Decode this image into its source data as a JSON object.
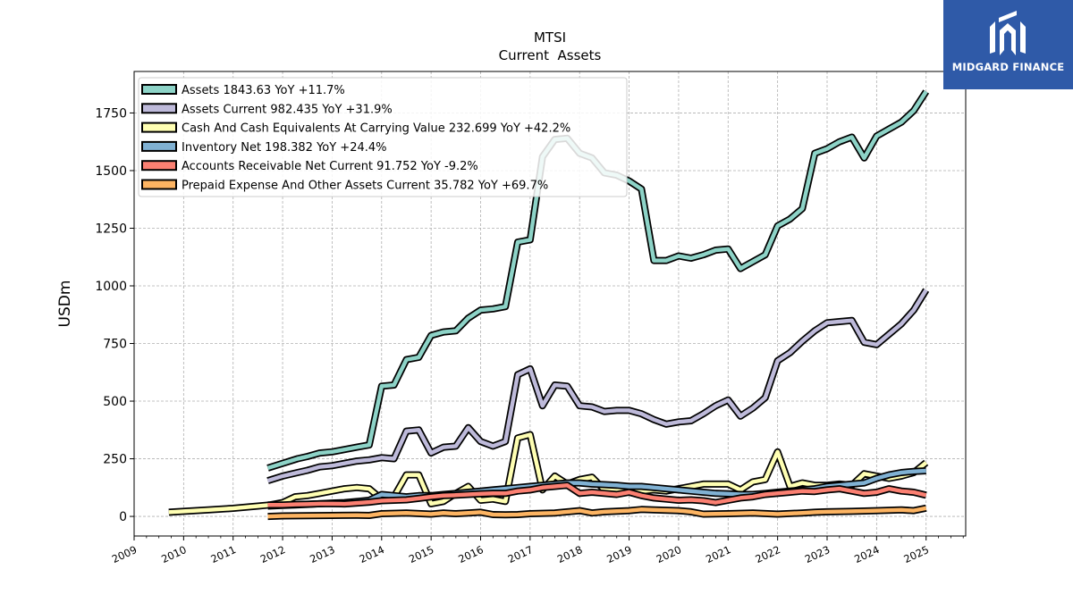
{
  "brand": {
    "name": "MIDGARD FINANCE",
    "color": "#2f5aa8"
  },
  "chart_data": {
    "type": "line",
    "title": "MTSI",
    "subtitle": "Current  Assets",
    "ylabel": "USDm",
    "xlim": [
      2009.0,
      2025.8
    ],
    "ylim": [
      -85,
      1930
    ],
    "xticks": [
      "2009",
      "2010",
      "2011",
      "2012",
      "2013",
      "2014",
      "2015",
      "2016",
      "2017",
      "2018",
      "2019",
      "2020",
      "2021",
      "2022",
      "2023",
      "2024",
      "2025"
    ],
    "yticks": [
      0,
      250,
      500,
      750,
      1000,
      1250,
      1500,
      1750
    ],
    "grid": true,
    "legend_position": "upper-left",
    "series": [
      {
        "name": "Assets  1843.63 YoY +11.7%",
        "color": "#8dd3c7",
        "x": [
          2011.7,
          2012.0,
          2012.3,
          2012.5,
          2012.75,
          2013.0,
          2013.25,
          2013.5,
          2013.75,
          2014.0,
          2014.25,
          2014.5,
          2014.75,
          2015.0,
          2015.25,
          2015.5,
          2015.75,
          2016.0,
          2016.25,
          2016.5,
          2016.75,
          2017.0,
          2017.25,
          2017.5,
          2017.75,
          2018.0,
          2018.25,
          2018.5,
          2018.75,
          2019.0,
          2019.25,
          2019.5,
          2019.75,
          2020.0,
          2020.25,
          2020.5,
          2020.75,
          2021.0,
          2021.25,
          2021.5,
          2021.75,
          2022.0,
          2022.25,
          2022.5,
          2022.75,
          2023.0,
          2023.25,
          2023.5,
          2023.75,
          2024.0,
          2024.25,
          2024.5,
          2024.75,
          2025.0
        ],
        "values": [
          210,
          230,
          250,
          260,
          275,
          280,
          290,
          300,
          310,
          565,
          570,
          680,
          690,
          785,
          800,
          805,
          860,
          895,
          900,
          910,
          1190,
          1200,
          1560,
          1635,
          1640,
          1575,
          1555,
          1490,
          1480,
          1455,
          1420,
          1110,
          1110,
          1130,
          1120,
          1135,
          1155,
          1160,
          1075,
          1105,
          1135,
          1260,
          1290,
          1335,
          1575,
          1595,
          1625,
          1645,
          1555,
          1650,
          1680,
          1710,
          1760,
          1843
        ]
      },
      {
        "name": "Assets Current  982.435 YoY +31.9%",
        "color": "#bebada",
        "x": [
          2011.7,
          2012.0,
          2012.3,
          2012.5,
          2012.75,
          2013.0,
          2013.25,
          2013.5,
          2013.75,
          2014.0,
          2014.25,
          2014.5,
          2014.75,
          2015.0,
          2015.25,
          2015.5,
          2015.75,
          2016.0,
          2016.25,
          2016.5,
          2016.75,
          2017.0,
          2017.25,
          2017.5,
          2017.75,
          2018.0,
          2018.25,
          2018.5,
          2018.75,
          2019.0,
          2019.25,
          2019.5,
          2019.75,
          2020.0,
          2020.25,
          2020.5,
          2020.75,
          2021.0,
          2021.25,
          2021.5,
          2021.75,
          2022.0,
          2022.25,
          2022.5,
          2022.75,
          2023.0,
          2023.25,
          2023.5,
          2023.75,
          2024.0,
          2024.25,
          2024.5,
          2024.75,
          2025.0
        ],
        "values": [
          155,
          175,
          190,
          200,
          215,
          220,
          230,
          240,
          245,
          255,
          250,
          370,
          375,
          275,
          300,
          305,
          385,
          325,
          305,
          325,
          615,
          640,
          480,
          570,
          565,
          480,
          475,
          455,
          460,
          460,
          445,
          420,
          400,
          410,
          415,
          445,
          480,
          505,
          435,
          470,
          515,
          675,
          710,
          760,
          805,
          840,
          845,
          850,
          755,
          745,
          790,
          835,
          895,
          982
        ]
      },
      {
        "name": "Cash And Cash Equivalents At Carrying Value  232.699 YoY +42.2%",
        "color": "#ffffb3",
        "x": [
          2009.7,
          2010.0,
          2010.5,
          2011.0,
          2011.5,
          2011.75,
          2012.0,
          2012.25,
          2012.5,
          2012.75,
          2013.0,
          2013.25,
          2013.5,
          2013.75,
          2014.0,
          2014.25,
          2014.5,
          2014.75,
          2015.0,
          2015.25,
          2015.5,
          2015.75,
          2016.0,
          2016.25,
          2016.5,
          2016.75,
          2017.0,
          2017.25,
          2017.5,
          2017.75,
          2018.0,
          2018.25,
          2018.5,
          2018.75,
          2019.0,
          2019.25,
          2019.5,
          2019.75,
          2020.0,
          2020.25,
          2020.5,
          2020.75,
          2021.0,
          2021.25,
          2021.5,
          2021.75,
          2022.0,
          2022.25,
          2022.5,
          2022.75,
          2023.0,
          2023.25,
          2023.5,
          2023.75,
          2024.0,
          2024.25,
          2024.5,
          2024.75,
          2025.0
        ],
        "values": [
          18,
          22,
          28,
          35,
          45,
          50,
          60,
          85,
          90,
          100,
          110,
          120,
          125,
          120,
          75,
          85,
          180,
          180,
          55,
          65,
          100,
          130,
          70,
          75,
          65,
          340,
          355,
          115,
          175,
          140,
          160,
          170,
          115,
          115,
          110,
          110,
          115,
          110,
          120,
          130,
          140,
          140,
          140,
          115,
          150,
          160,
          280,
          130,
          145,
          135,
          135,
          140,
          135,
          185,
          175,
          165,
          175,
          190,
          233
        ]
      },
      {
        "name": "Inventory Net  198.382 YoY +24.4%",
        "color": "#80b1d3",
        "x": [
          2011.7,
          2012.0,
          2012.25,
          2012.5,
          2012.75,
          2013.0,
          2013.25,
          2013.5,
          2013.75,
          2014.0,
          2014.25,
          2014.5,
          2014.75,
          2015.0,
          2015.25,
          2015.5,
          2015.75,
          2016.0,
          2016.25,
          2016.5,
          2016.75,
          2017.0,
          2017.25,
          2017.5,
          2017.75,
          2018.0,
          2018.25,
          2018.5,
          2018.75,
          2019.0,
          2019.25,
          2019.5,
          2019.75,
          2020.0,
          2020.25,
          2020.5,
          2020.75,
          2021.0,
          2021.25,
          2021.5,
          2021.75,
          2022.0,
          2022.25,
          2022.5,
          2022.75,
          2023.0,
          2023.25,
          2023.5,
          2023.75,
          2024.0,
          2024.25,
          2024.5,
          2024.75,
          2025.0
        ],
        "values": [
          45,
          48,
          50,
          52,
          55,
          58,
          60,
          65,
          70,
          95,
          90,
          85,
          90,
          90,
          95,
          100,
          105,
          110,
          115,
          120,
          125,
          130,
          135,
          140,
          145,
          145,
          140,
          138,
          135,
          130,
          130,
          125,
          120,
          115,
          110,
          105,
          100,
          98,
          95,
          95,
          100,
          105,
          110,
          115,
          120,
          130,
          135,
          140,
          145,
          165,
          180,
          190,
          195,
          198
        ]
      },
      {
        "name": "Accounts Receivable Net Current  91.752 YoY -9.2%",
        "color": "#fb8072",
        "x": [
          2011.7,
          2012.0,
          2012.25,
          2012.5,
          2012.75,
          2013.0,
          2013.25,
          2013.5,
          2013.75,
          2014.0,
          2014.25,
          2014.5,
          2014.75,
          2015.0,
          2015.25,
          2015.5,
          2015.75,
          2016.0,
          2016.25,
          2016.5,
          2016.75,
          2017.0,
          2017.25,
          2017.5,
          2017.75,
          2018.0,
          2018.25,
          2018.5,
          2018.75,
          2019.0,
          2019.25,
          2019.5,
          2019.75,
          2020.0,
          2020.25,
          2020.5,
          2020.75,
          2021.0,
          2021.25,
          2021.5,
          2021.75,
          2022.0,
          2022.25,
          2022.5,
          2022.75,
          2023.0,
          2023.25,
          2023.5,
          2023.75,
          2024.0,
          2024.25,
          2024.5,
          2024.75,
          2025.0
        ],
        "values": [
          50,
          50,
          52,
          53,
          55,
          55,
          54,
          58,
          62,
          68,
          70,
          72,
          78,
          85,
          90,
          92,
          95,
          98,
          100,
          100,
          110,
          115,
          125,
          130,
          135,
          100,
          105,
          100,
          95,
          105,
          90,
          80,
          75,
          70,
          72,
          68,
          60,
          70,
          80,
          85,
          95,
          100,
          105,
          110,
          108,
          115,
          120,
          110,
          100,
          105,
          120,
          110,
          105,
          92
        ]
      },
      {
        "name": "Prepaid Expense And Other Assets Current  35.782 YoY +69.7%",
        "color": "#fdb462",
        "x": [
          2011.7,
          2012.0,
          2012.5,
          2013.0,
          2013.5,
          2013.75,
          2014.0,
          2014.5,
          2015.0,
          2015.25,
          2015.5,
          2015.75,
          2016.0,
          2016.25,
          2016.5,
          2016.75,
          2017.0,
          2017.5,
          2018.0,
          2018.25,
          2018.5,
          2019.0,
          2019.25,
          2019.5,
          2020.0,
          2020.25,
          2020.5,
          2021.0,
          2021.5,
          2022.0,
          2022.5,
          2022.75,
          2023.0,
          2023.5,
          2024.0,
          2024.5,
          2024.75,
          2025.0
        ],
        "values": [
          0,
          2,
          3,
          4,
          5,
          4,
          12,
          15,
          10,
          15,
          12,
          15,
          18,
          8,
          7,
          8,
          12,
          15,
          25,
          15,
          20,
          25,
          30,
          28,
          25,
          20,
          10,
          12,
          15,
          10,
          15,
          18,
          20,
          22,
          25,
          28,
          25,
          36
        ]
      }
    ]
  }
}
